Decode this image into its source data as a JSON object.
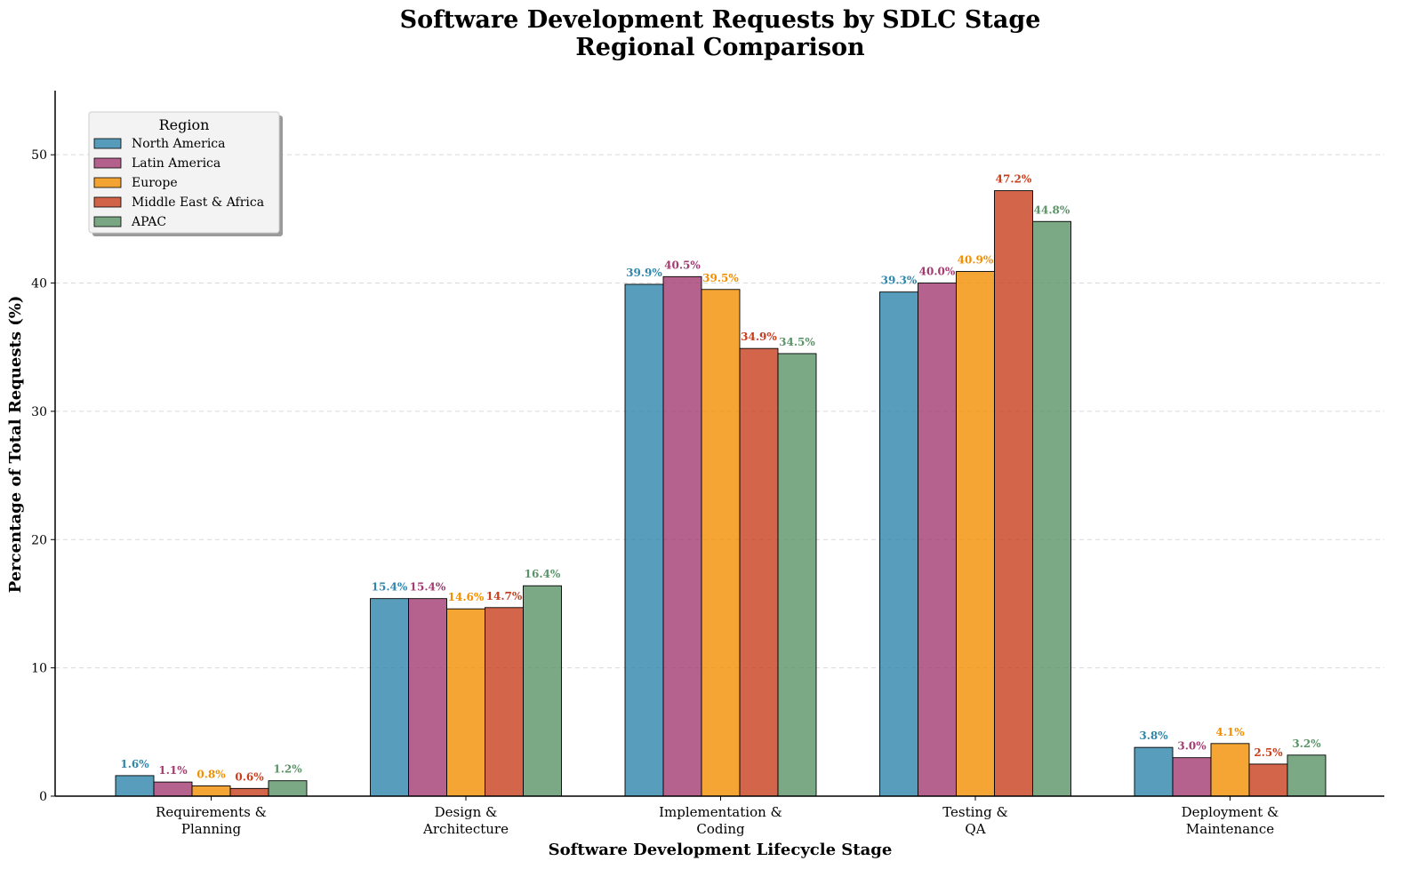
{
  "chart_data": {
    "type": "bar",
    "title": "Software Development Requests by SDLC Stage",
    "subtitle": "Regional Comparison",
    "xlabel": "Software Development Lifecycle Stage",
    "ylabel": "Percentage of Total Requests (%)",
    "ylim": [
      0,
      55
    ],
    "yticks": [
      0,
      10,
      20,
      30,
      40,
      50
    ],
    "grid": "y-dashed",
    "legend_title": "Region",
    "legend_position": "top-left",
    "categories": [
      [
        "Requirements &",
        "Planning"
      ],
      [
        "Design &",
        "Architecture"
      ],
      [
        "Implementation &",
        "Coding"
      ],
      [
        "Testing &",
        "QA"
      ],
      [
        "Deployment &",
        "Maintenance"
      ]
    ],
    "series": [
      {
        "name": "North America",
        "color": "#2E86AB",
        "values": [
          1.6,
          15.4,
          39.9,
          39.3,
          3.8
        ],
        "labels": [
          "1.6%",
          "15.4%",
          "39.9%",
          "39.3%",
          "3.8%"
        ]
      },
      {
        "name": "Latin America",
        "color": "#A23B72",
        "values": [
          1.1,
          15.4,
          40.5,
          40.0,
          3.0
        ],
        "labels": [
          "1.1%",
          "15.4%",
          "40.5%",
          "40.0%",
          "3.0%"
        ]
      },
      {
        "name": "Europe",
        "color": "#F18F01",
        "values": [
          0.8,
          14.6,
          39.5,
          40.9,
          4.1
        ],
        "labels": [
          "0.8%",
          "14.6%",
          "39.5%",
          "40.9%",
          "4.1%"
        ]
      },
      {
        "name": "Middle East & Africa",
        "color": "#C73E1D",
        "values": [
          0.6,
          14.7,
          34.9,
          47.2,
          2.5
        ],
        "labels": [
          "0.6%",
          "14.7%",
          "34.9%",
          "47.2%",
          "2.5%"
        ]
      },
      {
        "name": "APAC",
        "color": "#5A9367",
        "values": [
          1.2,
          16.4,
          34.5,
          44.8,
          3.2
        ],
        "labels": [
          "1.2%",
          "16.4%",
          "34.5%",
          "44.8%",
          "3.2%"
        ]
      }
    ]
  }
}
